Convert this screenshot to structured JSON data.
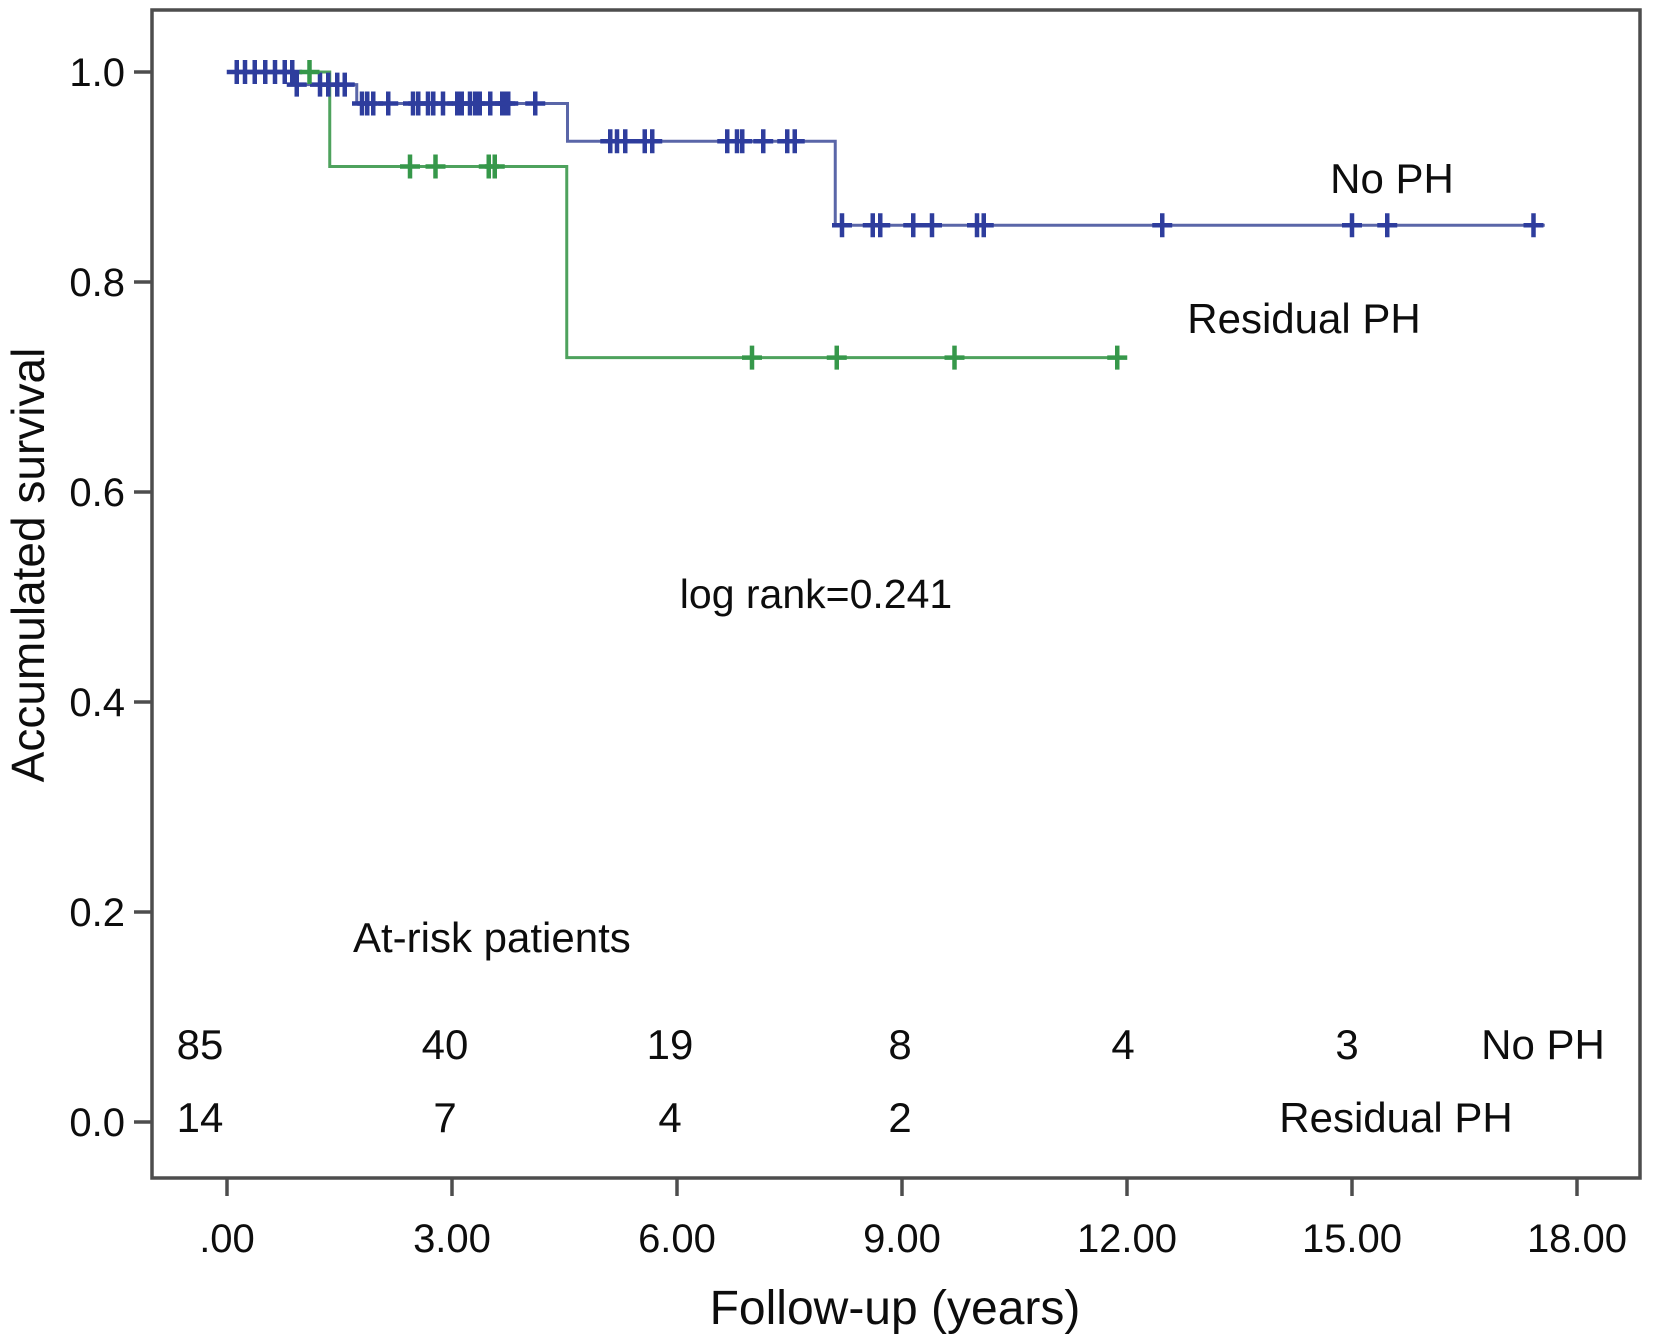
{
  "chart_data": {
    "type": "line",
    "subtype": "kaplan_meier_step",
    "title": "",
    "xlabel": "Follow-up (years)",
    "ylabel": "Accumulated survival",
    "annotation": "log rank=0.241",
    "xlim": [
      0,
      18
    ],
    "ylim": [
      0.0,
      1.0
    ],
    "grid": false,
    "legend_position": "inline-right",
    "x_ticks": [
      {
        "value": 0,
        "label": ".00"
      },
      {
        "value": 3,
        "label": "3.00"
      },
      {
        "value": 6,
        "label": "6.00"
      },
      {
        "value": 9,
        "label": "9.00"
      },
      {
        "value": 12,
        "label": "12.00"
      },
      {
        "value": 15,
        "label": "15.00"
      },
      {
        "value": 18,
        "label": "18.00"
      }
    ],
    "y_ticks": [
      {
        "value": 1.0,
        "label": "1.0"
      },
      {
        "value": 0.8,
        "label": "0.8"
      },
      {
        "value": 0.6,
        "label": "0.6"
      },
      {
        "value": 0.4,
        "label": "0.4"
      },
      {
        "value": 0.2,
        "label": "0.2"
      },
      {
        "value": 0.0,
        "label": "0.0"
      }
    ],
    "series": [
      {
        "name": "No PH",
        "line_color": "#5a66a8",
        "censor_color": "#2e3d9d",
        "steps": [
          [
            0,
            1.0
          ],
          [
            0.9,
            0.988
          ],
          [
            1.73,
            0.97
          ],
          [
            4.54,
            0.934
          ],
          [
            8.11,
            0.854
          ],
          [
            17.57,
            0.854
          ]
        ],
        "censors": [
          [
            0.13,
            1.0
          ],
          [
            0.24,
            1.0
          ],
          [
            0.37,
            1.0
          ],
          [
            0.51,
            1.0
          ],
          [
            0.64,
            1.0
          ],
          [
            0.77,
            1.0
          ],
          [
            0.87,
            1.0
          ],
          [
            0.93,
            0.988
          ],
          [
            1.24,
            0.988
          ],
          [
            1.35,
            0.988
          ],
          [
            1.47,
            0.988
          ],
          [
            1.57,
            0.988
          ],
          [
            1.8,
            0.97
          ],
          [
            1.87,
            0.97
          ],
          [
            1.95,
            0.97
          ],
          [
            2.15,
            0.97
          ],
          [
            2.48,
            0.97
          ],
          [
            2.55,
            0.97
          ],
          [
            2.68,
            0.97
          ],
          [
            2.75,
            0.97
          ],
          [
            2.88,
            0.97
          ],
          [
            3.07,
            0.97
          ],
          [
            3.13,
            0.97
          ],
          [
            3.24,
            0.97
          ],
          [
            3.31,
            0.97
          ],
          [
            3.37,
            0.97
          ],
          [
            3.51,
            0.97
          ],
          [
            3.67,
            0.97
          ],
          [
            3.71,
            0.97
          ],
          [
            3.75,
            0.97
          ],
          [
            4.11,
            0.97
          ],
          [
            5.11,
            0.934
          ],
          [
            5.2,
            0.934
          ],
          [
            5.31,
            0.934
          ],
          [
            5.57,
            0.934
          ],
          [
            5.67,
            0.934
          ],
          [
            6.67,
            0.934
          ],
          [
            6.8,
            0.934
          ],
          [
            6.87,
            0.934
          ],
          [
            7.15,
            0.934
          ],
          [
            7.47,
            0.934
          ],
          [
            7.57,
            0.934
          ],
          [
            8.2,
            0.854
          ],
          [
            8.61,
            0.854
          ],
          [
            8.71,
            0.854
          ],
          [
            9.15,
            0.854
          ],
          [
            9.4,
            0.854
          ],
          [
            10.0,
            0.854
          ],
          [
            10.09,
            0.854
          ],
          [
            12.47,
            0.854
          ],
          [
            15.0,
            0.854
          ],
          [
            15.47,
            0.854
          ],
          [
            17.42,
            0.854
          ]
        ]
      },
      {
        "name": "Residual PH",
        "line_color": "#4ea25d",
        "censor_color": "#36984a",
        "steps": [
          [
            0,
            1.0
          ],
          [
            1.37,
            0.91
          ],
          [
            4.53,
            0.728
          ],
          [
            12.0,
            0.728
          ]
        ],
        "censors": [
          [
            1.1,
            1.0
          ],
          [
            2.44,
            0.91
          ],
          [
            2.78,
            0.91
          ],
          [
            3.49,
            0.91
          ],
          [
            3.57,
            0.91
          ],
          [
            7.0,
            0.728
          ],
          [
            8.13,
            0.728
          ],
          [
            9.7,
            0.728
          ],
          [
            11.87,
            0.728
          ]
        ]
      }
    ],
    "at_risk": {
      "title": "At-risk patients",
      "times": [
        0,
        3,
        6,
        9,
        12,
        15
      ],
      "rows": [
        {
          "name": "No PH",
          "counts": [
            "85",
            "40",
            "19",
            "8",
            "4",
            "3"
          ]
        },
        {
          "name": "Residual PH",
          "counts": [
            "14",
            "7",
            "4",
            "2"
          ]
        }
      ]
    }
  }
}
